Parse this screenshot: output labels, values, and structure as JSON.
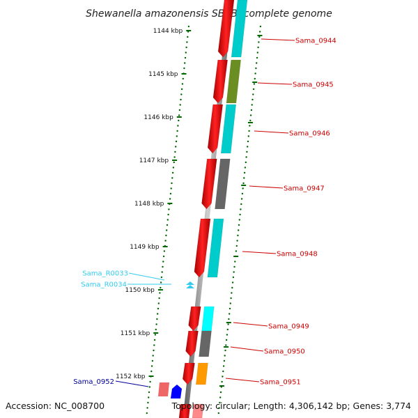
{
  "title": "Shewanella amazonensis SB2B, complete genome",
  "footer": {
    "accession": "Accession: NC_008700",
    "topology": "Topology: circular; Length: 4,306,142 bp; Genes: 3,774"
  },
  "ruler": {
    "ticks": [
      "1144 kbp",
      "1145 kbp",
      "1146 kbp",
      "1147 kbp",
      "1148 kbp",
      "1149 kbp",
      "1150 kbp",
      "1151 kbp",
      "1152 kbp"
    ]
  },
  "genes": [
    {
      "name": "Sama_0944",
      "strand": "forward",
      "class_color": "#00cccc",
      "label_color": "#cc0000"
    },
    {
      "name": "Sama_0945",
      "strand": "forward",
      "class_color": "#6b8e23",
      "label_color": "#cc0000"
    },
    {
      "name": "Sama_0946",
      "strand": "forward",
      "class_color": "#00cccc",
      "label_color": "#cc0000"
    },
    {
      "name": "Sama_0947",
      "strand": "forward",
      "class_color": "#666666",
      "label_color": "#cc0000"
    },
    {
      "name": "Sama_0948",
      "strand": "forward",
      "class_color": "#00cccc",
      "label_color": "#cc0000"
    },
    {
      "name": "Sama_0949",
      "strand": "forward",
      "class_color": "#00ffff",
      "label_color": "#cc0000"
    },
    {
      "name": "Sama_0950",
      "strand": "forward",
      "class_color": "#666666",
      "label_color": "#cc0000"
    },
    {
      "name": "Sama_0951",
      "strand": "forward",
      "class_color": "#ff9900",
      "label_color": "#cc0000"
    },
    {
      "name": "Sama_0952",
      "strand": "reverse",
      "class_color": "#0000ff",
      "label_color": "#000099"
    }
  ],
  "rnas": [
    {
      "name": "Sama_R0033",
      "label_color": "#33ccee"
    },
    {
      "name": "Sama_R0034",
      "label_color": "#33ccee"
    }
  ],
  "colors": {
    "cds_forward": "#ee0000",
    "cds_reverse": "#ee6666",
    "backbone": "#888888",
    "gc_skew": "#006600",
    "rna": "#33ccee"
  }
}
